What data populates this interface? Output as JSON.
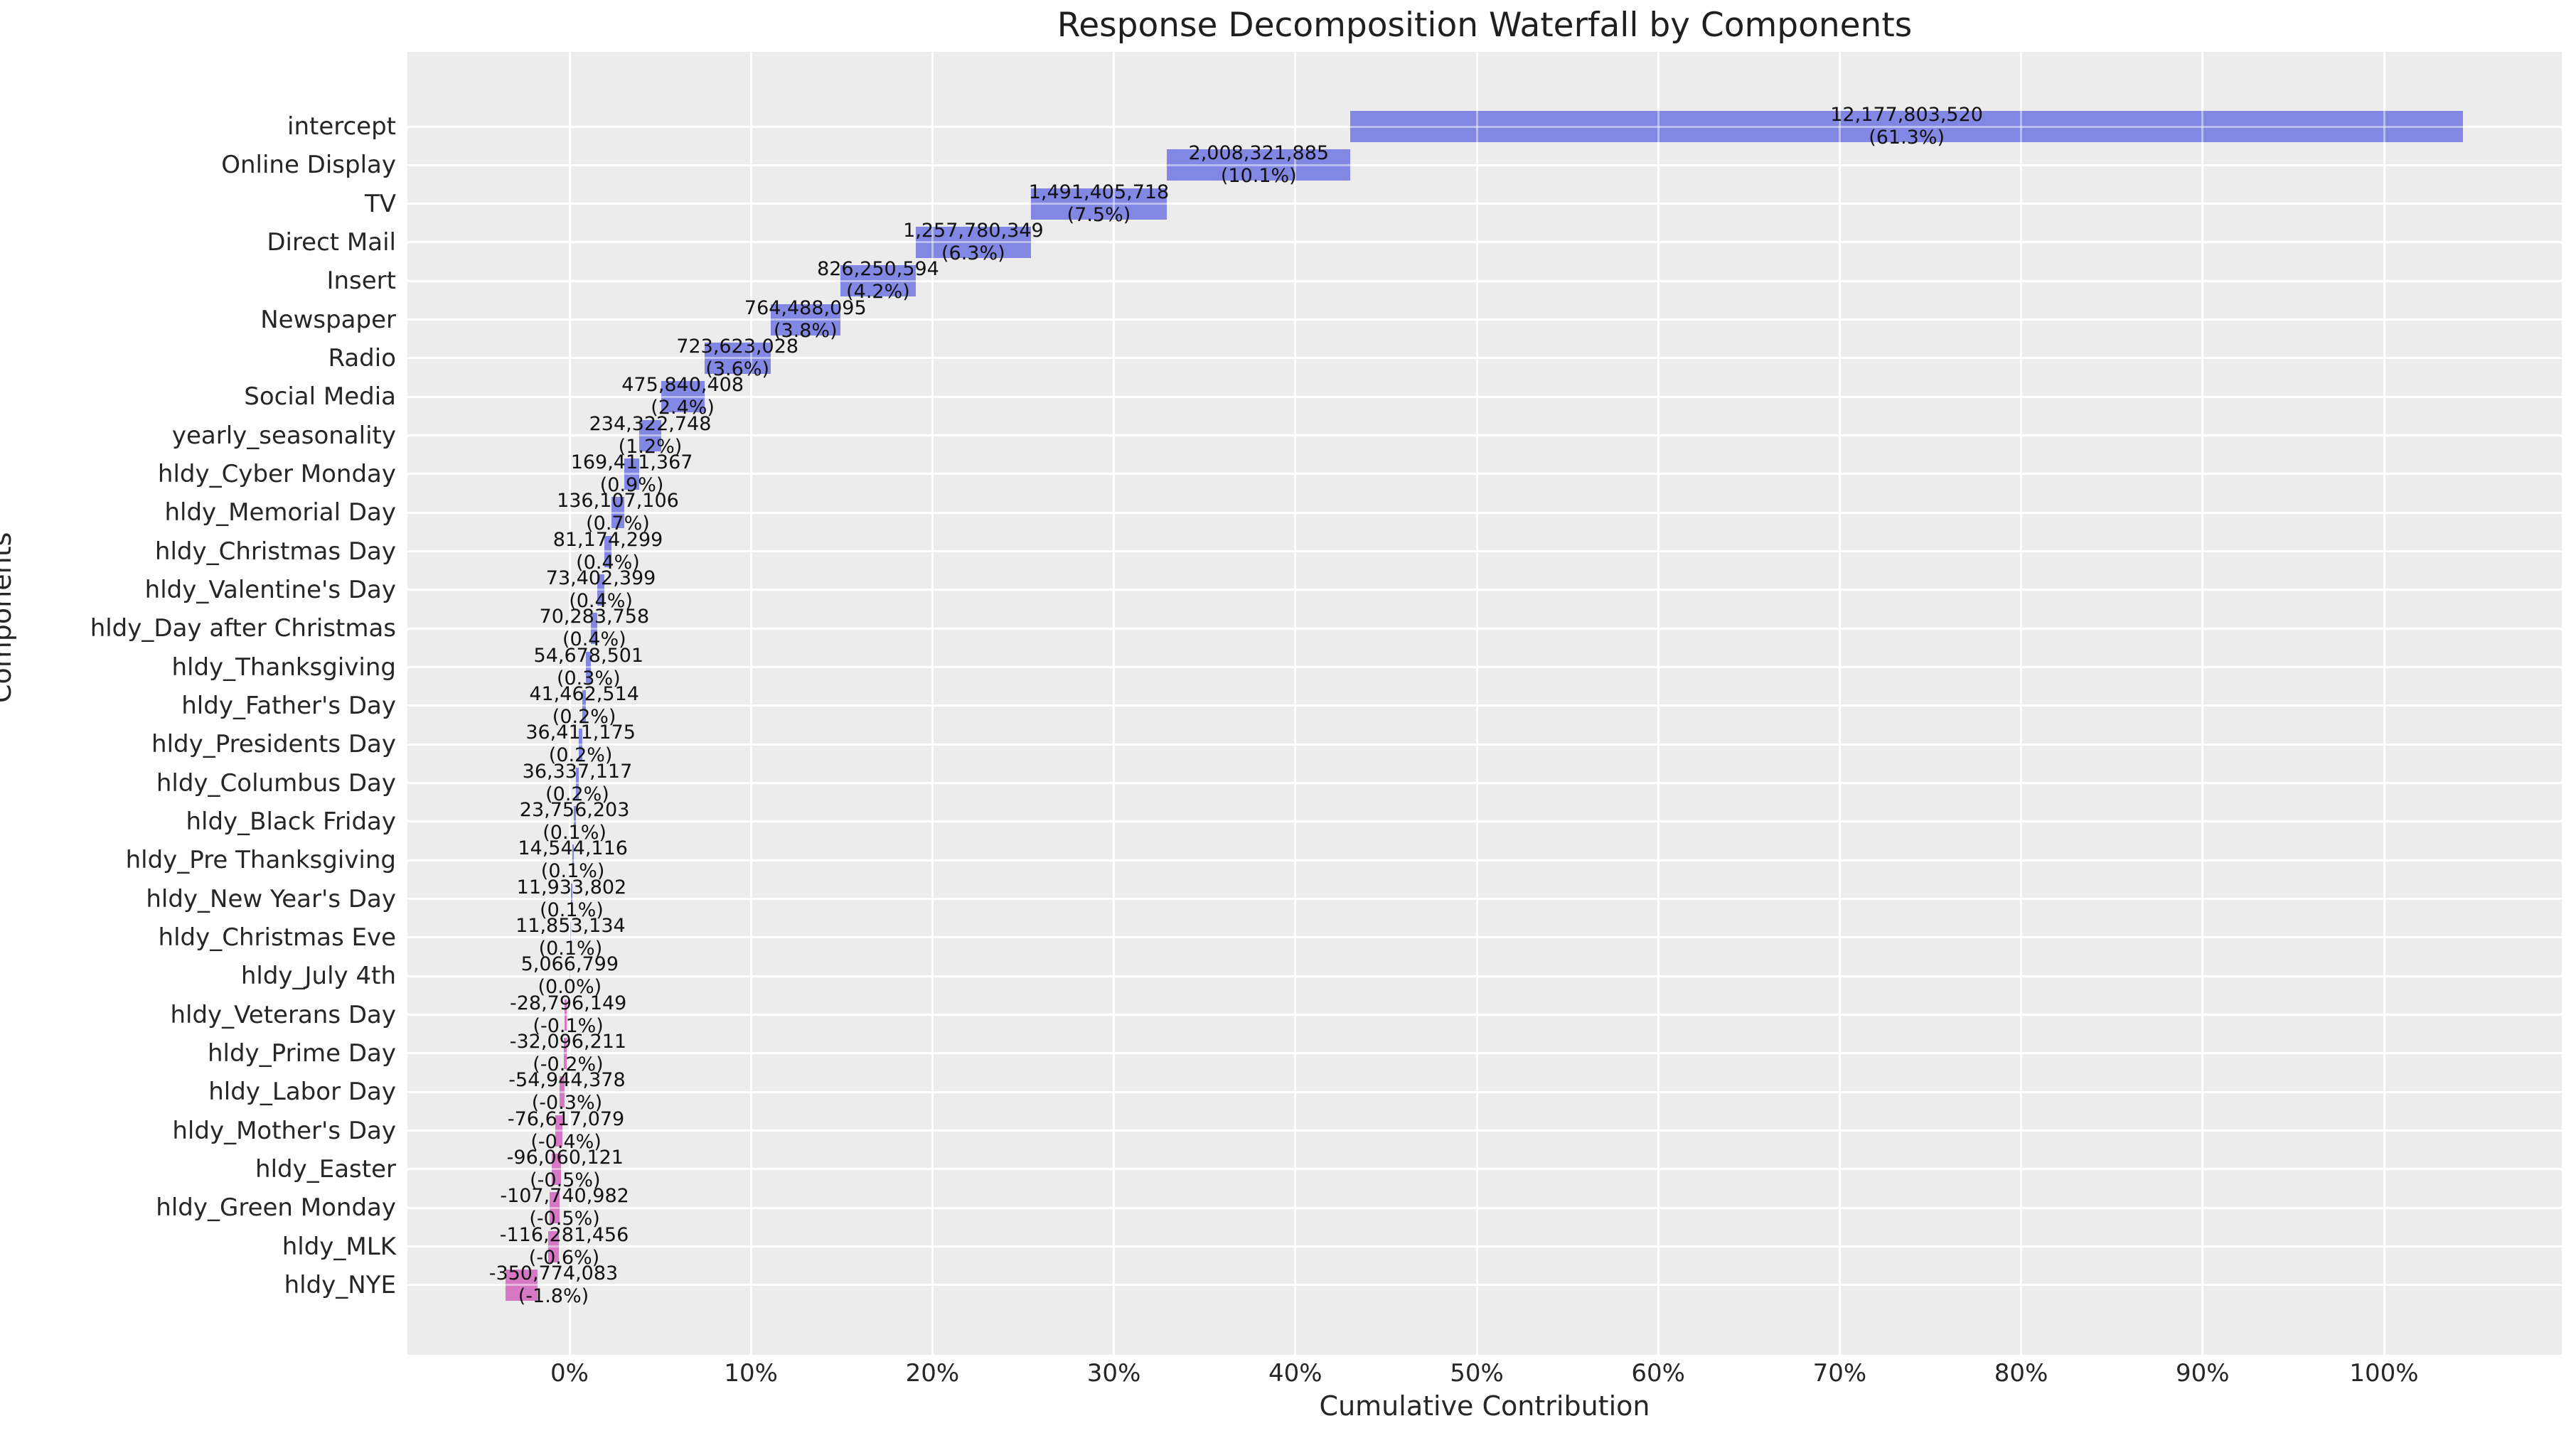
{
  "title": "Response Decomposition Waterfall by Components",
  "x_axis_label": "Cumulative Contribution",
  "y_axis_label": "Components",
  "colors": {
    "positive_bar": "#8187e2",
    "negative_bar": "#d678c4",
    "plot_background": "#ececec",
    "gridline": "#ffffff",
    "tick_text": "#262626",
    "annotation_text": "#111111"
  },
  "chart_data": {
    "type": "bar",
    "subtype": "horizontal-waterfall",
    "title": "Response Decomposition Waterfall by Components",
    "xlabel": "Cumulative Contribution",
    "ylabel": "Components",
    "grid": true,
    "x_axis_unit": "percent-of-total",
    "x_tick_pcts": [
      0,
      10,
      20,
      30,
      40,
      50,
      60,
      70,
      80,
      90,
      100
    ],
    "x_tick_labels": [
      "0%",
      "10%",
      "20%",
      "30%",
      "40%",
      "50%",
      "60%",
      "70%",
      "80%",
      "90%",
      "100%"
    ],
    "x_range_pct": [
      -8.93,
      109.74
    ],
    "total": 19862948176,
    "categories": [
      "intercept",
      "Online Display",
      "TV",
      "Direct Mail",
      "Insert",
      "Newspaper",
      "Radio",
      "Social Media",
      "yearly_seasonality",
      "hldy_Cyber Monday",
      "hldy_Memorial Day",
      "hldy_Christmas Day",
      "hldy_Valentine's Day",
      "hldy_Day after Christmas",
      "hldy_Thanksgiving",
      "hldy_Father's Day",
      "hldy_Presidents Day",
      "hldy_Columbus Day",
      "hldy_Black Friday",
      "hldy_Pre Thanksgiving",
      "hldy_New Year's Day",
      "hldy_Christmas Eve",
      "hldy_July 4th",
      "hldy_Veterans Day",
      "hldy_Prime Day",
      "hldy_Labor Day",
      "hldy_Mother's Day",
      "hldy_Easter",
      "hldy_Green Monday",
      "hldy_MLK",
      "hldy_NYE"
    ],
    "values": [
      12177803520,
      2008321885,
      1491405718,
      1257780349,
      826250594,
      764488095,
      723623028,
      475840408,
      234322748,
      169411367,
      136107106,
      81174299,
      73402399,
      70283758,
      54678501,
      41462514,
      36411175,
      36337117,
      23756203,
      14544116,
      11933802,
      11853134,
      5066799,
      -28796149,
      -32096211,
      -54944378,
      -76617079,
      -96060121,
      -107740982,
      -116281456,
      -350774083
    ],
    "value_labels": [
      "12,177,803,520",
      "2,008,321,885",
      "1,491,405,718",
      "1,257,780,349",
      "826,250,594",
      "764,488,095",
      "723,623,028",
      "475,840,408",
      "234,322,748",
      "169,411,367",
      "136,107,106",
      "81,174,299",
      "73,402,399",
      "70,283,758",
      "54,678,501",
      "41,462,514",
      "36,411,175",
      "36,337,117",
      "23,756,203",
      "14,544,116",
      "11,933,802",
      "11,853,134",
      "5,066,799",
      "-28,796,149",
      "-32,096,211",
      "-54,944,378",
      "-76,617,079",
      "-96,060,121",
      "-107,740,982",
      "-116,281,456",
      "-350,774,083"
    ],
    "pct_labels": [
      "(61.3%)",
      "(10.1%)",
      "(7.5%)",
      "(6.3%)",
      "(4.2%)",
      "(3.8%)",
      "(3.6%)",
      "(2.4%)",
      "(1.2%)",
      "(0.9%)",
      "(0.7%)",
      "(0.4%)",
      "(0.4%)",
      "(0.4%)",
      "(0.3%)",
      "(0.2%)",
      "(0.2%)",
      "(0.2%)",
      "(0.1%)",
      "(0.1%)",
      "(0.1%)",
      "(0.1%)",
      "(0.0%)",
      "(-0.1%)",
      "(-0.2%)",
      "(-0.3%)",
      "(-0.4%)",
      "(-0.5%)",
      "(-0.5%)",
      "(-0.6%)",
      "(-1.8%)"
    ]
  }
}
